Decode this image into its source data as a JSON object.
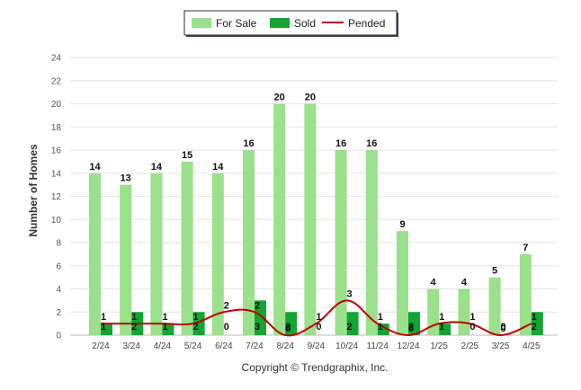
{
  "chart_data": {
    "type": "bar",
    "ylabel": "Number of Homes",
    "xlabel": "",
    "ylim": [
      0,
      24
    ],
    "yticks": [
      0,
      2,
      4,
      6,
      8,
      10,
      12,
      14,
      16,
      18,
      20,
      22,
      24
    ],
    "grid": true,
    "legend_position": "top-center",
    "categories": [
      "2/24",
      "3/24",
      "4/24",
      "5/24",
      "6/24",
      "7/24",
      "8/24",
      "9/24",
      "10/24",
      "11/24",
      "12/24",
      "1/25",
      "2/25",
      "3/25",
      "4/25"
    ],
    "series": [
      {
        "name": "For Sale",
        "kind": "bar",
        "color": "#9be08a",
        "values": [
          14,
          13,
          14,
          15,
          14,
          16,
          20,
          20,
          16,
          16,
          9,
          4,
          4,
          5,
          7
        ]
      },
      {
        "name": "Sold",
        "kind": "bar",
        "color": "#12a531",
        "values": [
          1,
          2,
          1,
          2,
          0,
          3,
          2,
          0,
          2,
          1,
          2,
          1,
          0,
          0,
          2
        ]
      },
      {
        "name": "Pended",
        "kind": "line",
        "color": "#c00000",
        "values": [
          1,
          1,
          1,
          1,
          2,
          2,
          0,
          1,
          3,
          1,
          0,
          1,
          1,
          0,
          1
        ]
      }
    ]
  },
  "footer": {
    "copyright": "Copyright © Trendgraphix, Inc."
  }
}
